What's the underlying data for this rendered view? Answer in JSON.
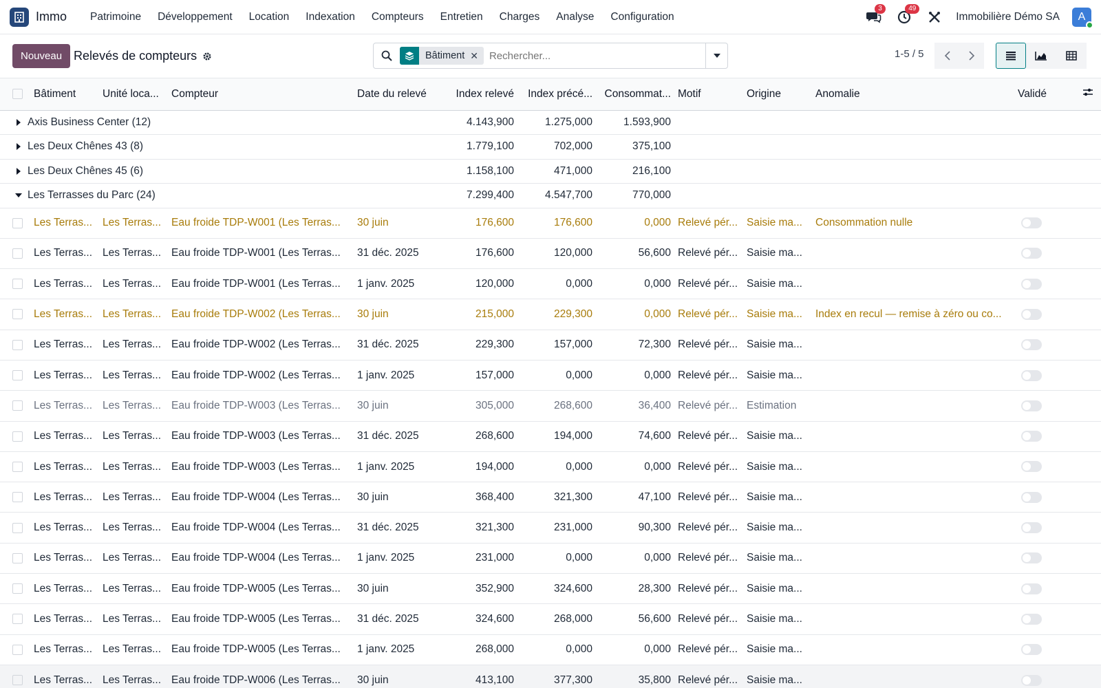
{
  "app": {
    "name": "Immo"
  },
  "menu": [
    "Patrimoine",
    "Développement",
    "Location",
    "Indexation",
    "Compteurs",
    "Entretien",
    "Charges",
    "Analyse",
    "Configuration"
  ],
  "systray": {
    "messages_count": "3",
    "activities_count": "49",
    "company": "Immobilière Démo SA",
    "avatar_letter": "A"
  },
  "control": {
    "new_label": "Nouveau",
    "title": "Relevés de compteurs",
    "facet_label": "Bâtiment",
    "search_placeholder": "Rechercher...",
    "pager": "1-5 / 5"
  },
  "columns": [
    "Bâtiment",
    "Unité loca...",
    "Compteur",
    "Date du relevé",
    "Index relevé",
    "Index précé...",
    "Consommat...",
    "Motif",
    "Origine",
    "Anomalie",
    "Validé"
  ],
  "groups": [
    {
      "label": "Axis Business Center (12)",
      "index": "4.143,900",
      "prev": "1.275,000",
      "cons": "1.593,900"
    },
    {
      "label": "Les Deux Chênes 43 (8)",
      "index": "1.779,100",
      "prev": "702,000",
      "cons": "375,100"
    },
    {
      "label": "Les Deux Chênes 45 (6)",
      "index": "1.158,100",
      "prev": "471,000",
      "cons": "216,100"
    },
    {
      "label": "Les Terrasses du Parc (24)",
      "index": "7.299,400",
      "prev": "4.547,700",
      "cons": "770,000"
    }
  ],
  "rows": [
    {
      "bat": "Les Terras...",
      "unit": "Les Terras...",
      "meter": "Eau froide TDP-W001 (Les Terras...",
      "date": "30 juin",
      "index": "176,600",
      "prev": "176,600",
      "cons": "0,000",
      "motif": "Relevé pér...",
      "origin": "Saisie ma...",
      "anomaly": "Consommation nulle",
      "state": "warn"
    },
    {
      "bat": "Les Terras...",
      "unit": "Les Terras...",
      "meter": "Eau froide TDP-W001 (Les Terras...",
      "date": "31 déc. 2025",
      "index": "176,600",
      "prev": "120,000",
      "cons": "56,600",
      "motif": "Relevé pér...",
      "origin": "Saisie ma...",
      "anomaly": "",
      "state": ""
    },
    {
      "bat": "Les Terras...",
      "unit": "Les Terras...",
      "meter": "Eau froide TDP-W001 (Les Terras...",
      "date": "1 janv. 2025",
      "index": "120,000",
      "prev": "0,000",
      "cons": "0,000",
      "motif": "Relevé pér...",
      "origin": "Saisie ma...",
      "anomaly": "",
      "state": ""
    },
    {
      "bat": "Les Terras...",
      "unit": "Les Terras...",
      "meter": "Eau froide TDP-W002 (Les Terras...",
      "date": "30 juin",
      "index": "215,000",
      "prev": "229,300",
      "cons": "0,000",
      "motif": "Relevé pér...",
      "origin": "Saisie ma...",
      "anomaly": "Index en recul — remise à zéro ou co...",
      "state": "warn"
    },
    {
      "bat": "Les Terras...",
      "unit": "Les Terras...",
      "meter": "Eau froide TDP-W002 (Les Terras...",
      "date": "31 déc. 2025",
      "index": "229,300",
      "prev": "157,000",
      "cons": "72,300",
      "motif": "Relevé pér...",
      "origin": "Saisie ma...",
      "anomaly": "",
      "state": ""
    },
    {
      "bat": "Les Terras...",
      "unit": "Les Terras...",
      "meter": "Eau froide TDP-W002 (Les Terras...",
      "date": "1 janv. 2025",
      "index": "157,000",
      "prev": "0,000",
      "cons": "0,000",
      "motif": "Relevé pér...",
      "origin": "Saisie ma...",
      "anomaly": "",
      "state": ""
    },
    {
      "bat": "Les Terras...",
      "unit": "Les Terras...",
      "meter": "Eau froide TDP-W003 (Les Terras...",
      "date": "30 juin",
      "index": "305,000",
      "prev": "268,600",
      "cons": "36,400",
      "motif": "Relevé pér...",
      "origin": "Estimation",
      "anomaly": "",
      "state": "muted"
    },
    {
      "bat": "Les Terras...",
      "unit": "Les Terras...",
      "meter": "Eau froide TDP-W003 (Les Terras...",
      "date": "31 déc. 2025",
      "index": "268,600",
      "prev": "194,000",
      "cons": "74,600",
      "motif": "Relevé pér...",
      "origin": "Saisie ma...",
      "anomaly": "",
      "state": ""
    },
    {
      "bat": "Les Terras...",
      "unit": "Les Terras...",
      "meter": "Eau froide TDP-W003 (Les Terras...",
      "date": "1 janv. 2025",
      "index": "194,000",
      "prev": "0,000",
      "cons": "0,000",
      "motif": "Relevé pér...",
      "origin": "Saisie ma...",
      "anomaly": "",
      "state": ""
    },
    {
      "bat": "Les Terras...",
      "unit": "Les Terras...",
      "meter": "Eau froide TDP-W004 (Les Terras...",
      "date": "30 juin",
      "index": "368,400",
      "prev": "321,300",
      "cons": "47,100",
      "motif": "Relevé pér...",
      "origin": "Saisie ma...",
      "anomaly": "",
      "state": ""
    },
    {
      "bat": "Les Terras...",
      "unit": "Les Terras...",
      "meter": "Eau froide TDP-W004 (Les Terras...",
      "date": "31 déc. 2025",
      "index": "321,300",
      "prev": "231,000",
      "cons": "90,300",
      "motif": "Relevé pér...",
      "origin": "Saisie ma...",
      "anomaly": "",
      "state": ""
    },
    {
      "bat": "Les Terras...",
      "unit": "Les Terras...",
      "meter": "Eau froide TDP-W004 (Les Terras...",
      "date": "1 janv. 2025",
      "index": "231,000",
      "prev": "0,000",
      "cons": "0,000",
      "motif": "Relevé pér...",
      "origin": "Saisie ma...",
      "anomaly": "",
      "state": ""
    },
    {
      "bat": "Les Terras...",
      "unit": "Les Terras...",
      "meter": "Eau froide TDP-W005 (Les Terras...",
      "date": "30 juin",
      "index": "352,900",
      "prev": "324,600",
      "cons": "28,300",
      "motif": "Relevé pér...",
      "origin": "Saisie ma...",
      "anomaly": "",
      "state": ""
    },
    {
      "bat": "Les Terras...",
      "unit": "Les Terras...",
      "meter": "Eau froide TDP-W005 (Les Terras...",
      "date": "31 déc. 2025",
      "index": "324,600",
      "prev": "268,000",
      "cons": "56,600",
      "motif": "Relevé pér...",
      "origin": "Saisie ma...",
      "anomaly": "",
      "state": ""
    },
    {
      "bat": "Les Terras...",
      "unit": "Les Terras...",
      "meter": "Eau froide TDP-W005 (Les Terras...",
      "date": "1 janv. 2025",
      "index": "268,000",
      "prev": "0,000",
      "cons": "0,000",
      "motif": "Relevé pér...",
      "origin": "Saisie ma...",
      "anomaly": "",
      "state": ""
    },
    {
      "bat": "Les Terras...",
      "unit": "Les Terras...",
      "meter": "Eau froide TDP-W006 (Les Terras...",
      "date": "30 juin",
      "index": "413,100",
      "prev": "377,300",
      "cons": "35,800",
      "motif": "Relevé pér...",
      "origin": "Saisie ma...",
      "anomaly": "",
      "state": "last"
    }
  ],
  "colors": {
    "brand": "#714b67",
    "accent": "#017e84",
    "warning_text": "#a87c0b",
    "badge": "#dc3545"
  }
}
